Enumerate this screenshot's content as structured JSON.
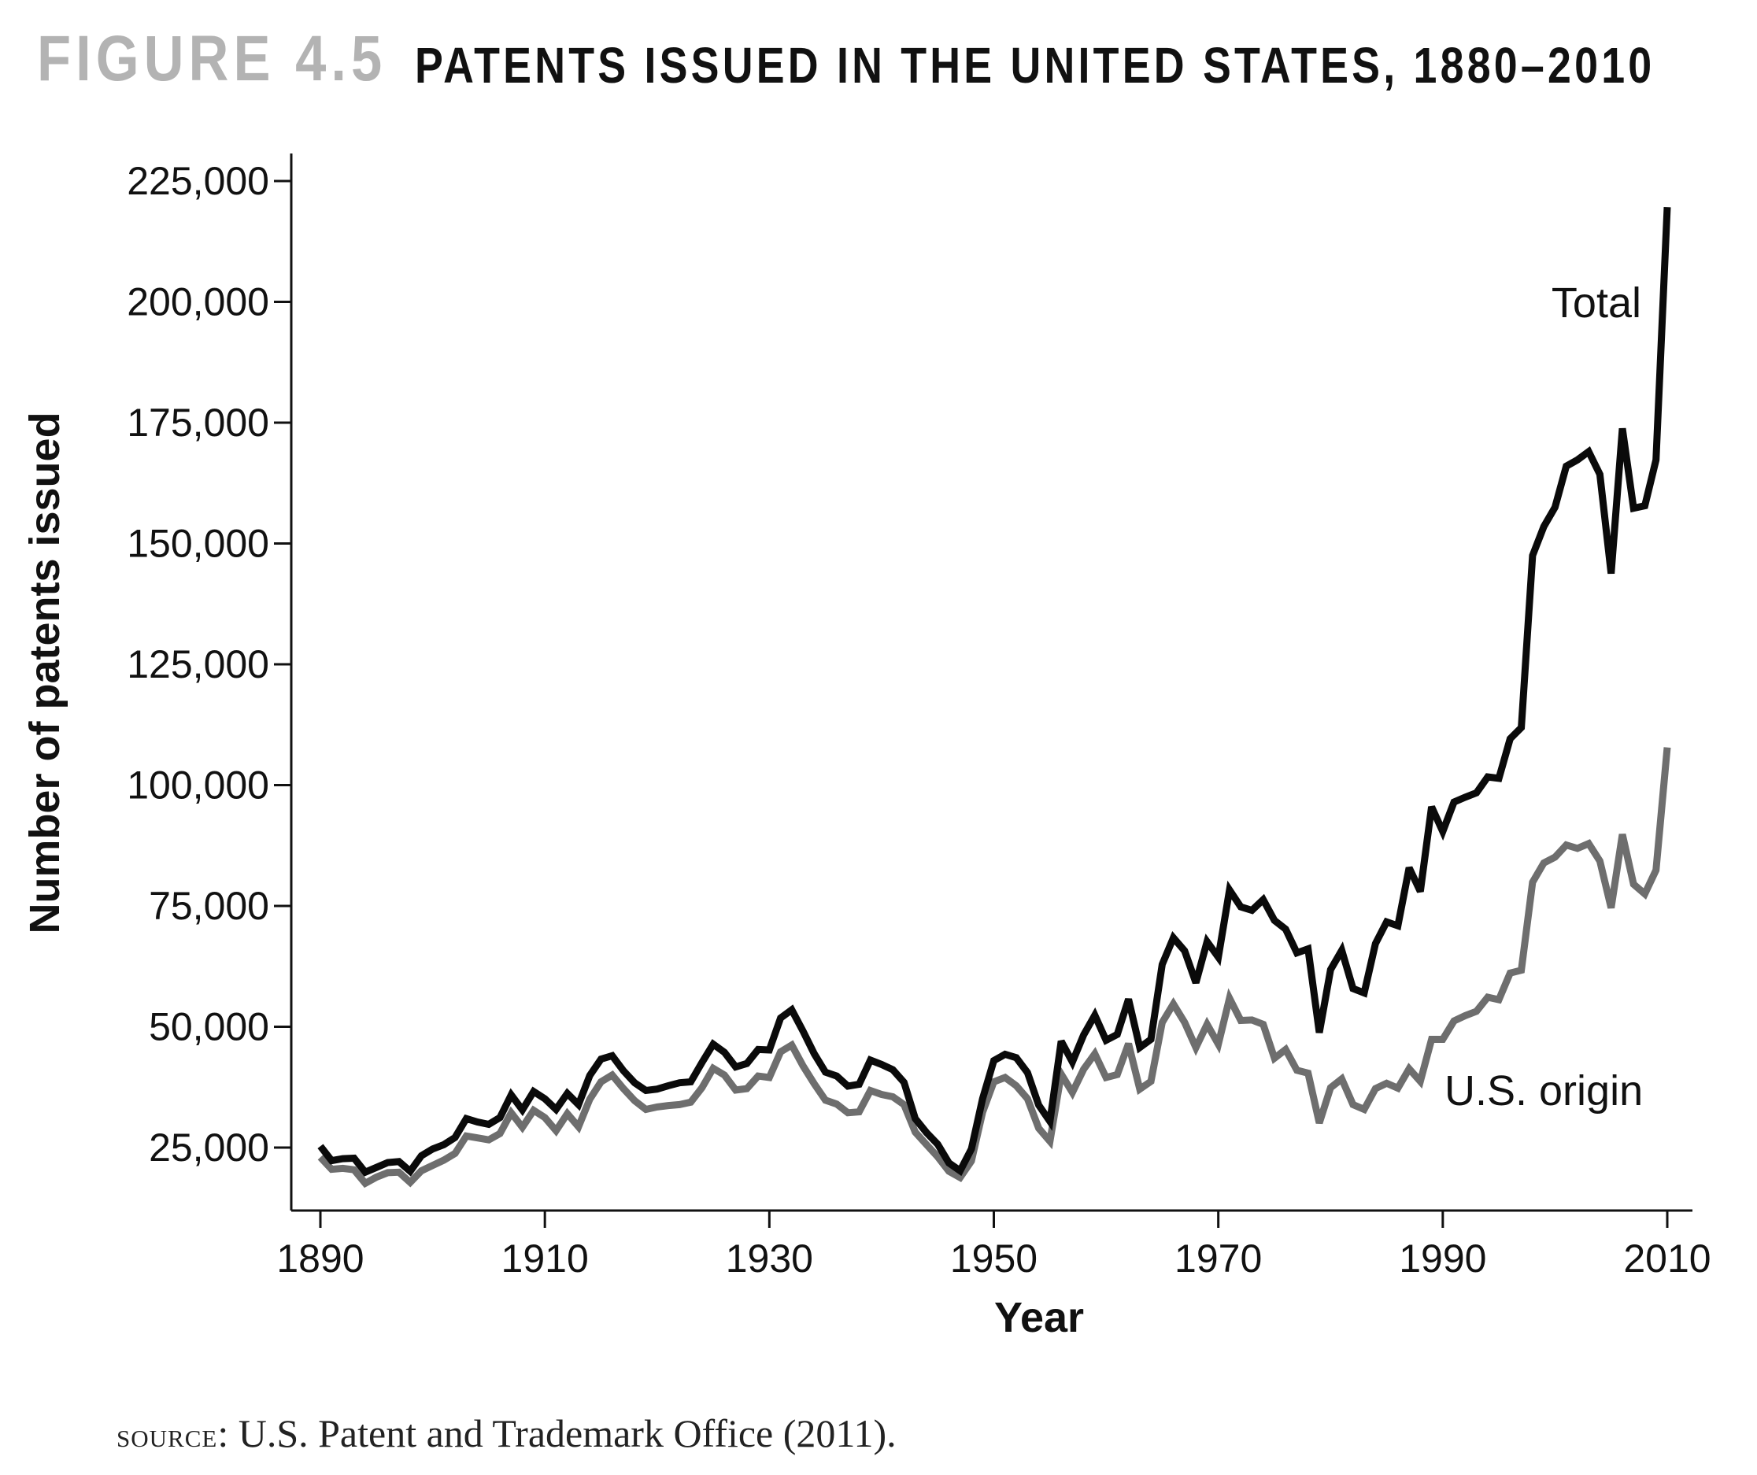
{
  "figure": {
    "number": "FIGURE 4.5",
    "title": "PATENTS ISSUED IN THE UNITED STATES, 1880–2010",
    "source_prefix": "source",
    "source_text": ": U.S. Patent and Trademark Office (2011)."
  },
  "chart_data": {
    "type": "line",
    "title": "PATENTS ISSUED IN THE UNITED STATES, 1880–2010",
    "xlabel": "Year",
    "ylabel": "Number of patents issued",
    "xlim": [
      1890,
      2010
    ],
    "ylim": [
      12000,
      231000
    ],
    "xticks": [
      1890,
      1910,
      1930,
      1950,
      1970,
      1990,
      2010
    ],
    "xtick_labels": [
      "1890",
      "1910",
      "1930",
      "1950",
      "1970",
      "1990",
      "2010"
    ],
    "yticks": [
      25000,
      50000,
      75000,
      100000,
      125000,
      150000,
      175000,
      200000,
      225000
    ],
    "ytick_labels": [
      "25,000",
      "50,000",
      "75,000",
      "100,000",
      "125,000",
      "150,000",
      "175,000",
      "200,000",
      "225,000"
    ],
    "grid": false,
    "legend": "none (series labeled directly on chart)",
    "x": [
      1890,
      1891,
      1892,
      1893,
      1894,
      1895,
      1896,
      1897,
      1898,
      1899,
      1900,
      1901,
      1902,
      1903,
      1904,
      1905,
      1906,
      1907,
      1908,
      1909,
      1910,
      1911,
      1912,
      1913,
      1914,
      1915,
      1916,
      1917,
      1918,
      1919,
      1920,
      1921,
      1922,
      1923,
      1924,
      1925,
      1926,
      1927,
      1928,
      1929,
      1930,
      1931,
      1932,
      1933,
      1934,
      1935,
      1936,
      1937,
      1938,
      1939,
      1940,
      1941,
      1942,
      1943,
      1944,
      1945,
      1946,
      1947,
      1948,
      1949,
      1950,
      1951,
      1952,
      1953,
      1954,
      1955,
      1956,
      1957,
      1958,
      1959,
      1960,
      1961,
      1962,
      1963,
      1964,
      1965,
      1966,
      1967,
      1968,
      1969,
      1970,
      1971,
      1972,
      1973,
      1974,
      1975,
      1976,
      1977,
      1978,
      1979,
      1980,
      1981,
      1982,
      1983,
      1984,
      1985,
      1986,
      1987,
      1988,
      1989,
      1990,
      1991,
      1992,
      1993,
      1994,
      1995,
      1996,
      1997,
      1998,
      1999,
      2000,
      2001,
      2002,
      2003,
      2004,
      2005,
      2006,
      2007,
      2008,
      2009,
      2010
    ],
    "series": [
      {
        "name": "Total",
        "color": "#0a0a0a",
        "values": [
          25300,
          22300,
          22700,
          22800,
          19900,
          20900,
          21900,
          22100,
          20100,
          23300,
          24700,
          25600,
          27100,
          31000,
          30300,
          29800,
          31200,
          35900,
          32800,
          36600,
          35100,
          32900,
          36200,
          33900,
          39900,
          43300,
          44000,
          40900,
          38400,
          36800,
          37100,
          37800,
          38400,
          38600,
          42600,
          46400,
          44700,
          41700,
          42400,
          45300,
          45200,
          51800,
          53500,
          49100,
          44400,
          40600,
          39800,
          37700,
          38100,
          43100,
          42200,
          41100,
          38500,
          31000,
          28100,
          25700,
          21800,
          20200,
          24700,
          35100,
          43000,
          44300,
          43600,
          40500,
          33800,
          30400,
          47000,
          42700,
          48300,
          52400,
          47200,
          48400,
          55700,
          45700,
          47400,
          62900,
          68400,
          65700,
          59100,
          67600,
          64400,
          78300,
          74800,
          74100,
          76300,
          72000,
          70200,
          65300,
          66100,
          48800,
          61800,
          65800,
          57900,
          57000,
          67200,
          71700,
          70900,
          82900,
          78000,
          95500,
          90400,
          96500,
          97500,
          98400,
          101700,
          101400,
          109600,
          111900,
          147500,
          153500,
          157500,
          166000,
          167300,
          169000,
          164300,
          143800,
          173800,
          157300,
          157800,
          167300,
          219600
        ]
      },
      {
        "name": "U.S. origin",
        "color": "#6e6e6e",
        "values": [
          23000,
          20500,
          20700,
          20400,
          17600,
          18900,
          19800,
          19900,
          17800,
          20200,
          21300,
          22400,
          23800,
          27400,
          27000,
          26600,
          27900,
          32200,
          29200,
          32700,
          31200,
          28500,
          32000,
          29300,
          35000,
          38600,
          40000,
          37200,
          34700,
          32900,
          33400,
          33700,
          33900,
          34400,
          37400,
          41400,
          40000,
          36900,
          37200,
          39800,
          39500,
          44800,
          46200,
          41900,
          38200,
          34800,
          34000,
          32200,
          32400,
          36800,
          36000,
          35500,
          33900,
          28200,
          25600,
          23100,
          20100,
          18800,
          22200,
          32300,
          38600,
          39500,
          37800,
          35100,
          29000,
          26300,
          40200,
          36400,
          41200,
          44400,
          39500,
          40100,
          46500,
          37100,
          38700,
          50900,
          54700,
          50900,
          45700,
          50500,
          46400,
          55900,
          51300,
          51400,
          50500,
          43500,
          45300,
          41000,
          40400,
          30100,
          37400,
          39200,
          33900,
          32900,
          37200,
          38300,
          37300,
          41300,
          38700,
          47400,
          47400,
          51200,
          52300,
          53200,
          56100,
          55600,
          61100,
          61700,
          79900,
          83900,
          85100,
          87600,
          86900,
          87900,
          84300,
          74600,
          89800,
          79500,
          77500,
          82400,
          107800
        ]
      }
    ],
    "annotations": [
      {
        "text": "Total",
        "near_series": "Total"
      },
      {
        "text": "U.S. origin",
        "near_series": "U.S. origin"
      }
    ]
  }
}
